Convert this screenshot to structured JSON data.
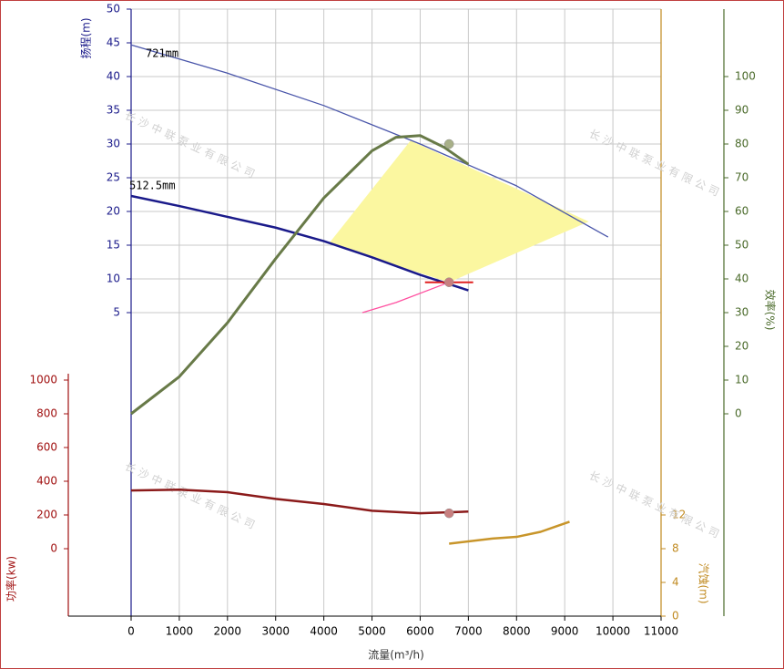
{
  "chart_data": {
    "type": "line",
    "xlabel": "流量(m³/h)",
    "ylabel": "扬程(m)",
    "y2label": "效率(%)",
    "y3label": "功率(kw)",
    "y4label": "汽蚀(m)",
    "watermark": "长沙中联泵业有限公司",
    "xlim": [
      0,
      11000
    ],
    "xticks": [
      0,
      1000,
      2000,
      3000,
      4000,
      5000,
      6000,
      7000,
      8000,
      9000,
      10000,
      11000
    ],
    "ylim": [
      -40,
      50
    ],
    "yticks": [
      5,
      10,
      15,
      20,
      25,
      30,
      35,
      40,
      45,
      50
    ],
    "y2lim": [
      -60,
      120
    ],
    "y2ticks": [
      0,
      10,
      20,
      30,
      40,
      50,
      60,
      70,
      80,
      90,
      100
    ],
    "y3lim": [
      -400,
      3200
    ],
    "y3ticks": [
      0,
      200,
      400,
      600,
      800,
      1000
    ],
    "y4lim": [
      0,
      72
    ],
    "y4ticks": [
      0,
      4,
      8,
      12
    ],
    "grid": true,
    "region": {
      "color": "#fbf7a0",
      "axis": "y",
      "x": [
        4100,
        5800,
        9500,
        6600
      ],
      "values": [
        15.2,
        30.5,
        18.5,
        9.5
      ]
    },
    "series": [
      {
        "name": "721mm",
        "color": "#4a56aa",
        "width": 1.3,
        "axis": "y",
        "x": [
          0,
          2000,
          4000,
          6000,
          8000,
          9900
        ],
        "values": [
          44.7,
          40.5,
          35.7,
          30.0,
          23.8,
          16.2
        ]
      },
      {
        "name": "512.5mm",
        "color": "#1a1a8a",
        "width": 2.5,
        "axis": "y",
        "x": [
          0,
          1000,
          2000,
          3000,
          4000,
          5000,
          6000,
          7000
        ],
        "values": [
          22.3,
          20.8,
          19.2,
          17.6,
          15.6,
          13.2,
          10.6,
          8.3
        ]
      },
      {
        "color": "#687a48",
        "width": 3,
        "axis": "y2",
        "x": [
          0,
          1000,
          2000,
          3000,
          4000,
          5000,
          5500,
          6000,
          6500,
          7000
        ],
        "values": [
          0,
          11,
          27,
          46,
          64,
          78,
          82,
          82.5,
          79,
          74
        ]
      },
      {
        "color": "#8b1a1a",
        "width": 2.5,
        "axis": "y3",
        "x": [
          0,
          1000,
          2000,
          3000,
          4000,
          5000,
          6000,
          7000
        ],
        "values": [
          345,
          350,
          335,
          295,
          265,
          225,
          210,
          220
        ]
      },
      {
        "color": "#c8952a",
        "width": 2.5,
        "axis": "y4",
        "x": [
          6600,
          7500,
          8000,
          8500,
          8800,
          9100
        ],
        "values": [
          8.6,
          9.2,
          9.4,
          10,
          10.6,
          11.2
        ]
      },
      {
        "color": "#ff50a0",
        "width": 1.3,
        "axis": "y",
        "x": [
          4800,
          5500,
          6600
        ],
        "values": [
          5,
          6.5,
          9.5
        ]
      },
      {
        "color": "#e02020",
        "width": 2,
        "axis": "y",
        "x": [
          6100,
          7100
        ],
        "values": [
          9.5,
          9.5
        ]
      }
    ],
    "points": [
      {
        "x": 6600,
        "value": 30,
        "axis": "y",
        "color": "#a8b088"
      },
      {
        "x": 6600,
        "value": 9.5,
        "axis": "y",
        "color": "#c88080"
      },
      {
        "x": 6600,
        "value": 210,
        "axis": "y3",
        "color": "#c88080"
      }
    ]
  }
}
